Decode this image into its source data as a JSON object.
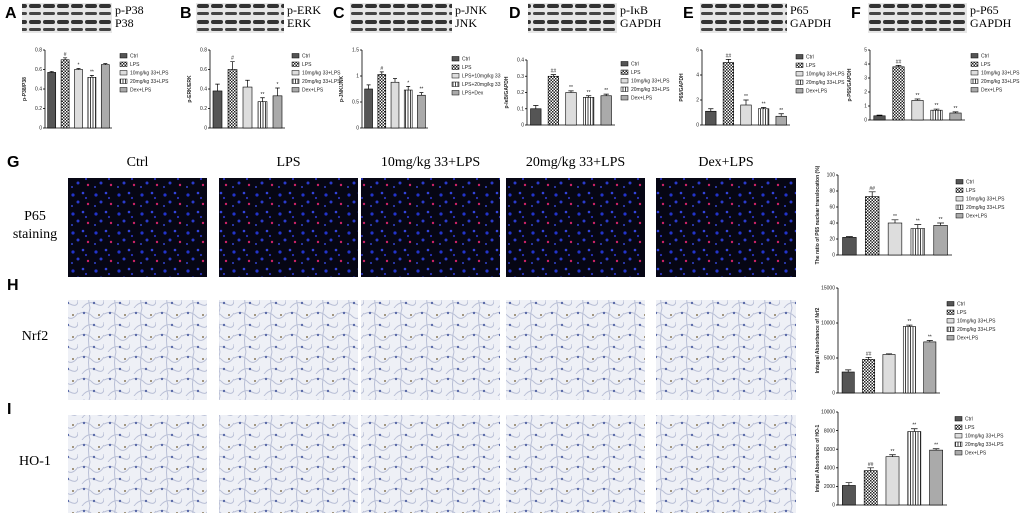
{
  "panel_labels": [
    "A",
    "B",
    "C",
    "D",
    "E",
    "F",
    "G",
    "H",
    "I"
  ],
  "blot_labels": [
    [
      "p-P38",
      "P38"
    ],
    [
      "p-ERK",
      "ERK"
    ],
    [
      "p-JNK",
      "JNK"
    ],
    [
      "p-IκB",
      "GAPDH"
    ],
    [
      "P65",
      "GAPDH"
    ],
    [
      "p-P65",
      "GAPDH"
    ]
  ],
  "column_headers": [
    "Ctrl",
    "LPS",
    "10mg/kg 33+LPS",
    "20mg/kg 33+LPS",
    "Dex+LPS"
  ],
  "row_labels": [
    [
      "P65",
      "staining"
    ],
    [
      "Nrf2"
    ],
    [
      "HO-1"
    ]
  ],
  "chart_data": [
    {
      "type": "bar",
      "ylabel": "p-P38/P38",
      "categories": [
        "Ctrl",
        "LPS",
        "10mg/kg 33+LPS",
        "20mg/kg 33+LPS",
        "Dex+LPS"
      ],
      "values": [
        0.57,
        0.7,
        0.6,
        0.52,
        0.65
      ],
      "errors": [
        0.01,
        0.02,
        0.01,
        0.02,
        0.01
      ],
      "annotations": [
        null,
        "#",
        "*",
        "**",
        null
      ],
      "colors": [
        "#555555",
        "checker",
        "#dddddd",
        "vstripe",
        "#aaaaaa"
      ],
      "ylim": [
        0,
        0.8
      ],
      "yticks": [
        0,
        0.2,
        0.4,
        0.6,
        0.8
      ]
    },
    {
      "type": "bar",
      "ylabel": "p-ERK/ERK",
      "categories": [
        "Ctrl",
        "LPS",
        "10mg/kg 33+LPS",
        "20mg/kg 33+LPS",
        "Dex+LPS"
      ],
      "values": [
        0.38,
        0.6,
        0.42,
        0.27,
        0.33
      ],
      "errors": [
        0.07,
        0.08,
        0.07,
        0.04,
        0.08
      ],
      "annotations": [
        null,
        "#",
        null,
        "**",
        "*"
      ],
      "colors": [
        "#555555",
        "checker",
        "#dddddd",
        "vstripe",
        "#aaaaaa"
      ],
      "ylim": [
        0,
        0.8
      ],
      "yticks": [
        0,
        0.2,
        0.4,
        0.6,
        0.8
      ]
    },
    {
      "type": "bar",
      "ylabel": "p-JNK/JNK",
      "categories": [
        "Ctrl",
        "LPS",
        "LPS+10mg/kg 33",
        "LPS+20mg/kg 33",
        "LPS+Dex"
      ],
      "values": [
        0.75,
        1.03,
        0.88,
        0.73,
        0.63
      ],
      "errors": [
        0.08,
        0.05,
        0.07,
        0.07,
        0.05
      ],
      "annotations": [
        null,
        "#",
        null,
        "*",
        "**"
      ],
      "colors": [
        "#555555",
        "checker",
        "#dddddd",
        "vstripe",
        "#aaaaaa"
      ],
      "ylim": [
        0,
        1.5
      ],
      "yticks": [
        0,
        0.5,
        1,
        1.5
      ]
    },
    {
      "type": "bar",
      "ylabel": "p-IκB/GAPDH",
      "categories": [
        "Ctrl",
        "LPS",
        "10mg/kg 33+LPS",
        "20mg/kg 33+LPS",
        "Dex+LPS"
      ],
      "values": [
        0.1,
        0.3,
        0.2,
        0.17,
        0.18
      ],
      "errors": [
        0.02,
        0.01,
        0.01,
        0.01,
        0.01
      ],
      "annotations": [
        null,
        "##",
        "**",
        "**",
        "**"
      ],
      "colors": [
        "#555555",
        "checker",
        "#dddddd",
        "vstripe",
        "#aaaaaa"
      ],
      "ylim": [
        0,
        0.4
      ],
      "yticks": [
        0,
        0.1,
        0.2,
        0.3,
        0.4
      ]
    },
    {
      "type": "bar",
      "ylabel": "P65/GAPDH",
      "categories": [
        "Ctrl",
        "LPS",
        "10mg/kg 33+LPS",
        "20mg/kg 33+LPS",
        "Dex+LPS"
      ],
      "values": [
        1.1,
        5,
        1.6,
        1.3,
        0.7
      ],
      "errors": [
        0.2,
        0.25,
        0.4,
        0.1,
        0.2
      ],
      "annotations": [
        null,
        "##",
        "**",
        "**",
        "**"
      ],
      "colors": [
        "#555555",
        "checker",
        "#dddddd",
        "vstripe",
        "#aaaaaa"
      ],
      "ylim": [
        0,
        6
      ],
      "yticks": [
        0,
        2,
        4,
        6
      ]
    },
    {
      "type": "bar",
      "ylabel": "p-P65/GAPDH",
      "categories": [
        "Ctrl",
        "LPS",
        "10mg/kg 33+LPS",
        "20mg/kg 33+LPS",
        "Dex+LPS"
      ],
      "values": [
        0.3,
        3.8,
        1.4,
        0.7,
        0.5
      ],
      "errors": [
        0.05,
        0.1,
        0.1,
        0.08,
        0.08
      ],
      "annotations": [
        null,
        "##",
        "**",
        "**",
        "**"
      ],
      "colors": [
        "#555555",
        "checker",
        "#dddddd",
        "vstripe",
        "#aaaaaa"
      ],
      "ylim": [
        0,
        5
      ],
      "yticks": [
        0,
        1,
        2,
        3,
        4,
        5
      ]
    },
    {
      "type": "bar",
      "ylabel": "The ratio of P65 nuclear translocation (%)",
      "categories": [
        "Ctrl",
        "LPS",
        "10mg/kg 33+LPS",
        "20mg/kg 33+LPS",
        "Dex+LPS"
      ],
      "values": [
        22,
        73,
        40,
        33,
        37
      ],
      "errors": [
        1,
        6,
        4,
        5,
        3
      ],
      "annotations": [
        null,
        "##",
        "**",
        "**",
        "**"
      ],
      "colors": [
        "#555555",
        "checker",
        "#dddddd",
        "vstripe",
        "#aaaaaa"
      ],
      "ylim": [
        0,
        100
      ],
      "yticks": [
        0,
        20,
        40,
        60,
        80,
        100
      ]
    },
    {
      "type": "bar",
      "ylabel": "Integral Absorbance of Nrf2",
      "categories": [
        "Ctrl",
        "LPS",
        "10mg/kg 33+LPS",
        "20mg/kg 33+LPS",
        "Dex+LPS"
      ],
      "values": [
        3000,
        4800,
        5500,
        9500,
        7300
      ],
      "errors": [
        300,
        300,
        100,
        200,
        200
      ],
      "annotations": [
        null,
        "##",
        null,
        "**",
        "**"
      ],
      "colors": [
        "#555555",
        "checker",
        "#dddddd",
        "vstripe",
        "#aaaaaa"
      ],
      "ylim": [
        0,
        15000
      ],
      "yticks": [
        0,
        5000,
        10000,
        15000
      ]
    },
    {
      "type": "bar",
      "ylabel": "Integral Absorbance of HO-1",
      "categories": [
        "Ctrl",
        "LPS",
        "10mg/kg 33+LPS",
        "20mg/kg 33+LPS",
        "Dex+LPS"
      ],
      "values": [
        2100,
        3700,
        5200,
        7900,
        5900
      ],
      "errors": [
        300,
        300,
        200,
        300,
        150
      ],
      "annotations": [
        null,
        "##",
        "**",
        "**",
        "**"
      ],
      "colors": [
        "#555555",
        "checker",
        "#dddddd",
        "vstripe",
        "#aaaaaa"
      ],
      "ylim": [
        0,
        10000
      ],
      "yticks": [
        0,
        2000,
        4000,
        6000,
        8000,
        10000
      ]
    }
  ]
}
